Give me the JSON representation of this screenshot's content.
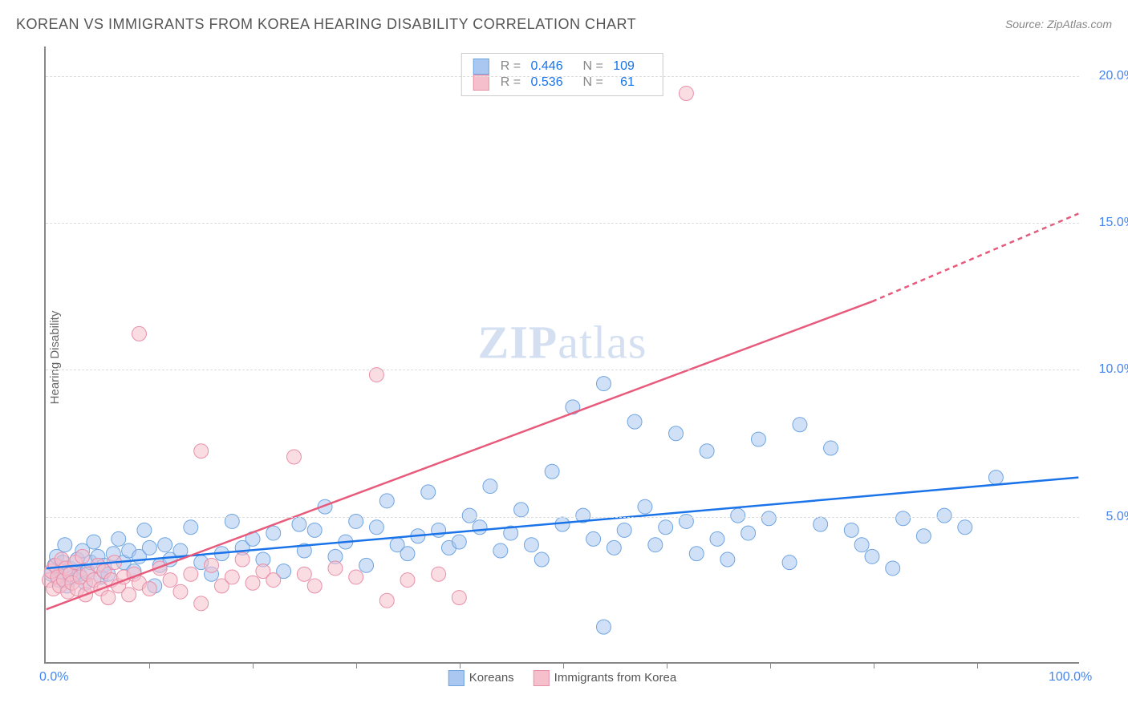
{
  "title": "KOREAN VS IMMIGRANTS FROM KOREA HEARING DISABILITY CORRELATION CHART",
  "source_label": "Source: ZipAtlas.com",
  "watermark": {
    "part1": "ZIP",
    "part2": "atlas"
  },
  "y_axis_label": "Hearing Disability",
  "chart": {
    "type": "scatter",
    "xlim": [
      0,
      100
    ],
    "ylim": [
      0,
      21
    ],
    "x_tick_labels": [
      {
        "value": 0,
        "label": "0.0%"
      },
      {
        "value": 100,
        "label": "100.0%"
      }
    ],
    "x_minor_ticks": [
      10,
      20,
      30,
      40,
      50,
      60,
      70,
      80,
      90
    ],
    "y_tick_labels": [
      {
        "value": 5,
        "label": "5.0%"
      },
      {
        "value": 10,
        "label": "10.0%"
      },
      {
        "value": 15,
        "label": "15.0%"
      },
      {
        "value": 20,
        "label": "20.0%"
      }
    ],
    "y_gridlines": [
      5,
      10,
      15,
      20
    ],
    "grid_color": "#dddddd",
    "axis_color": "#888888",
    "background_color": "#ffffff",
    "marker_radius": 9,
    "marker_opacity": 0.55,
    "line_width": 2.5,
    "series": [
      {
        "name": "Koreans",
        "color_fill": "#a9c7f0",
        "color_stroke": "#6fa5e0",
        "line_color": "#1a73e8",
        "R": "0.446",
        "N": "109",
        "trend_line": {
          "x1": 0,
          "y1": 3.2,
          "x2": 100,
          "y2": 6.3
        },
        "points": [
          [
            0.5,
            3.0
          ],
          [
            0.8,
            3.3
          ],
          [
            1.0,
            3.6
          ],
          [
            1.2,
            2.8
          ],
          [
            1.4,
            3.1
          ],
          [
            1.6,
            3.4
          ],
          [
            1.8,
            4.0
          ],
          [
            2.0,
            2.6
          ],
          [
            2.3,
            3.2
          ],
          [
            2.6,
            2.9
          ],
          [
            3.0,
            3.5
          ],
          [
            3.2,
            3.0
          ],
          [
            3.5,
            3.8
          ],
          [
            3.8,
            2.7
          ],
          [
            4.0,
            3.1
          ],
          [
            4.3,
            3.4
          ],
          [
            4.6,
            4.1
          ],
          [
            5.0,
            3.6
          ],
          [
            5.3,
            2.9
          ],
          [
            5.6,
            3.3
          ],
          [
            6.0,
            3.0
          ],
          [
            6.5,
            3.7
          ],
          [
            7.0,
            4.2
          ],
          [
            7.5,
            3.4
          ],
          [
            8.0,
            3.8
          ],
          [
            8.5,
            3.1
          ],
          [
            9.0,
            3.6
          ],
          [
            9.5,
            4.5
          ],
          [
            10.0,
            3.9
          ],
          [
            10.5,
            2.6
          ],
          [
            11.0,
            3.3
          ],
          [
            11.5,
            4.0
          ],
          [
            12.0,
            3.5
          ],
          [
            13.0,
            3.8
          ],
          [
            14.0,
            4.6
          ],
          [
            15.0,
            3.4
          ],
          [
            16.0,
            3.0
          ],
          [
            17.0,
            3.7
          ],
          [
            18.0,
            4.8
          ],
          [
            19.0,
            3.9
          ],
          [
            20.0,
            4.2
          ],
          [
            21.0,
            3.5
          ],
          [
            22.0,
            4.4
          ],
          [
            23.0,
            3.1
          ],
          [
            24.5,
            4.7
          ],
          [
            25.0,
            3.8
          ],
          [
            26.0,
            4.5
          ],
          [
            27.0,
            5.3
          ],
          [
            28.0,
            3.6
          ],
          [
            29.0,
            4.1
          ],
          [
            30.0,
            4.8
          ],
          [
            31.0,
            3.3
          ],
          [
            32.0,
            4.6
          ],
          [
            33.0,
            5.5
          ],
          [
            34.0,
            4.0
          ],
          [
            35.0,
            3.7
          ],
          [
            36.0,
            4.3
          ],
          [
            37.0,
            5.8
          ],
          [
            38.0,
            4.5
          ],
          [
            39.0,
            3.9
          ],
          [
            40.0,
            4.1
          ],
          [
            41.0,
            5.0
          ],
          [
            42.0,
            4.6
          ],
          [
            43.0,
            6.0
          ],
          [
            44.0,
            3.8
          ],
          [
            45.0,
            4.4
          ],
          [
            46.0,
            5.2
          ],
          [
            47.0,
            4.0
          ],
          [
            48.0,
            3.5
          ],
          [
            49.0,
            6.5
          ],
          [
            50.0,
            4.7
          ],
          [
            51.0,
            8.7
          ],
          [
            52.0,
            5.0
          ],
          [
            53.0,
            4.2
          ],
          [
            54.0,
            9.5
          ],
          [
            55.0,
            3.9
          ],
          [
            56.0,
            4.5
          ],
          [
            57.0,
            8.2
          ],
          [
            58.0,
            5.3
          ],
          [
            59.0,
            4.0
          ],
          [
            60.0,
            4.6
          ],
          [
            61.0,
            7.8
          ],
          [
            62.0,
            4.8
          ],
          [
            63.0,
            3.7
          ],
          [
            64.0,
            7.2
          ],
          [
            65.0,
            4.2
          ],
          [
            66.0,
            3.5
          ],
          [
            67.0,
            5.0
          ],
          [
            68.0,
            4.4
          ],
          [
            69.0,
            7.6
          ],
          [
            70.0,
            4.9
          ],
          [
            72.0,
            3.4
          ],
          [
            73.0,
            8.1
          ],
          [
            75.0,
            4.7
          ],
          [
            76.0,
            7.3
          ],
          [
            78.0,
            4.5
          ],
          [
            79.0,
            4.0
          ],
          [
            80.0,
            3.6
          ],
          [
            82.0,
            3.2
          ],
          [
            83.0,
            4.9
          ],
          [
            85.0,
            4.3
          ],
          [
            87.0,
            5.0
          ],
          [
            89.0,
            4.6
          ],
          [
            92.0,
            6.3
          ],
          [
            54.0,
            1.2
          ]
        ]
      },
      {
        "name": "Immigrants from Korea",
        "color_fill": "#f5c0cc",
        "color_stroke": "#e88fa8",
        "line_color": "#e85a7c",
        "R": "0.536",
        "N": "61",
        "trend_line_solid": {
          "x1": 0,
          "y1": 1.8,
          "x2": 80,
          "y2": 12.3
        },
        "trend_line_dashed": {
          "x1": 80,
          "y1": 12.3,
          "x2": 100,
          "y2": 15.3
        },
        "points": [
          [
            0.3,
            2.8
          ],
          [
            0.5,
            3.1
          ],
          [
            0.7,
            2.5
          ],
          [
            0.9,
            3.3
          ],
          [
            1.1,
            2.9
          ],
          [
            1.3,
            2.6
          ],
          [
            1.5,
            3.5
          ],
          [
            1.7,
            2.8
          ],
          [
            1.9,
            3.2
          ],
          [
            2.1,
            2.4
          ],
          [
            2.3,
            3.0
          ],
          [
            2.5,
            2.7
          ],
          [
            2.8,
            3.4
          ],
          [
            3.0,
            2.5
          ],
          [
            3.3,
            2.9
          ],
          [
            3.5,
            3.6
          ],
          [
            3.8,
            2.3
          ],
          [
            4.0,
            3.0
          ],
          [
            4.3,
            2.6
          ],
          [
            4.6,
            2.8
          ],
          [
            5.0,
            3.3
          ],
          [
            5.3,
            2.5
          ],
          [
            5.6,
            3.1
          ],
          [
            6.0,
            2.2
          ],
          [
            6.3,
            2.8
          ],
          [
            6.6,
            3.4
          ],
          [
            7.0,
            2.6
          ],
          [
            7.5,
            2.9
          ],
          [
            8.0,
            2.3
          ],
          [
            8.5,
            3.0
          ],
          [
            9.0,
            2.7
          ],
          [
            9,
            11.2
          ],
          [
            10.0,
            2.5
          ],
          [
            11.0,
            3.2
          ],
          [
            12.0,
            2.8
          ],
          [
            13.0,
            2.4
          ],
          [
            14.0,
            3.0
          ],
          [
            15.0,
            7.2
          ],
          [
            16.0,
            3.3
          ],
          [
            17.0,
            2.6
          ],
          [
            18.0,
            2.9
          ],
          [
            19.0,
            3.5
          ],
          [
            20.0,
            2.7
          ],
          [
            21.0,
            3.1
          ],
          [
            22.0,
            2.8
          ],
          [
            24.0,
            7.0
          ],
          [
            25.0,
            3.0
          ],
          [
            26.0,
            2.6
          ],
          [
            28.0,
            3.2
          ],
          [
            30.0,
            2.9
          ],
          [
            32.0,
            9.8
          ],
          [
            33.0,
            2.1
          ],
          [
            35.0,
            2.8
          ],
          [
            38.0,
            3.0
          ],
          [
            40.0,
            2.2
          ],
          [
            62.0,
            19.4
          ],
          [
            15.0,
            2.0
          ]
        ]
      }
    ],
    "bottom_legend": [
      {
        "label": "Koreans",
        "fill": "#a9c7f0",
        "stroke": "#6fa5e0"
      },
      {
        "label": "Immigrants from Korea",
        "fill": "#f5c0cc",
        "stroke": "#e88fa8"
      }
    ],
    "top_legend_rows": [
      {
        "swatch_fill": "#a9c7f0",
        "swatch_stroke": "#6fa5e0",
        "R": "0.446",
        "N": "109"
      },
      {
        "swatch_fill": "#f5c0cc",
        "swatch_stroke": "#e88fa8",
        "R": "0.536",
        "N": "  61"
      }
    ]
  }
}
